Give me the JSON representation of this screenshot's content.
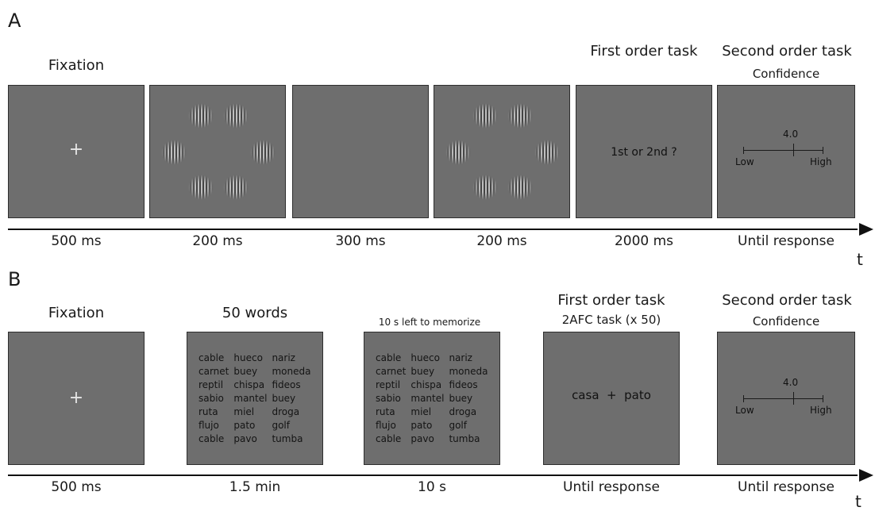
{
  "panel_a": {
    "label": "A",
    "headers": {
      "fixation": "Fixation",
      "first_order": "First order task",
      "second_order": "Second order task",
      "confidence": "Confidence"
    },
    "screens": {
      "fixation_symbol": "+",
      "question": "1st or 2nd ?",
      "scale_value": "4.0",
      "scale_low": "Low",
      "scale_high": "High"
    },
    "durations": [
      "500 ms",
      "200 ms",
      "300 ms",
      "200 ms",
      "2000 ms",
      "Until response"
    ],
    "axis_label": "t"
  },
  "panel_b": {
    "label": "B",
    "headers": {
      "fixation": "Fixation",
      "words": "50 words",
      "memorize": "10 s left to memorize",
      "first_order": "First order task",
      "task": "2AFC task (x 50)",
      "second_order": "Second order task",
      "confidence": "Confidence"
    },
    "screens": {
      "fixation_symbol": "+",
      "word_list": [
        "cable",
        "hueco",
        "nariz",
        "carnet",
        "buey",
        "moneda",
        "reptil",
        "chispa",
        "fideos",
        "sabio",
        "mantel",
        "buey",
        "ruta",
        "miel",
        "droga",
        "flujo",
        "pato",
        "golf",
        "cable",
        "pavo",
        "tumba"
      ],
      "choice": "casa  +  pato",
      "scale_value": "4.0",
      "scale_low": "Low",
      "scale_high": "High"
    },
    "durations": [
      "500 ms",
      "1.5 min",
      "10 s",
      "Until response",
      "Until response"
    ],
    "axis_label": "t"
  }
}
